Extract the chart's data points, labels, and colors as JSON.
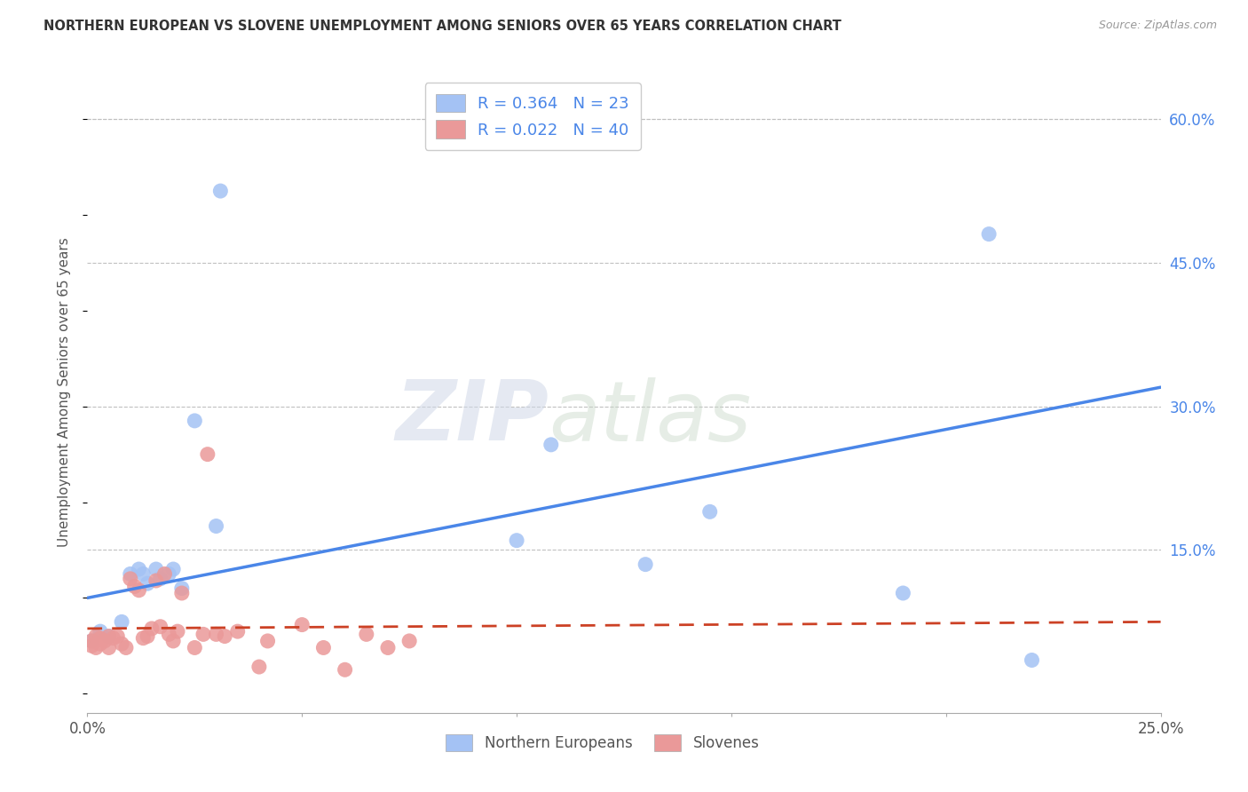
{
  "title": "NORTHERN EUROPEAN VS SLOVENE UNEMPLOYMENT AMONG SENIORS OVER 65 YEARS CORRELATION CHART",
  "source": "Source: ZipAtlas.com",
  "ylabel": "Unemployment Among Seniors over 65 years",
  "xlim": [
    0.0,
    0.25
  ],
  "ylim": [
    -0.02,
    0.65
  ],
  "xticks": [
    0.0,
    0.05,
    0.1,
    0.15,
    0.2,
    0.25
  ],
  "xticklabels": [
    "0.0%",
    "",
    "",
    "",
    "",
    "25.0%"
  ],
  "yticks_right": [
    0.0,
    0.15,
    0.3,
    0.45,
    0.6
  ],
  "yticklabels_right": [
    "",
    "15.0%",
    "30.0%",
    "45.0%",
    "60.0%"
  ],
  "blue_color": "#a4c2f4",
  "pink_color": "#ea9999",
  "blue_line_color": "#4a86e8",
  "pink_line_color": "#cc4125",
  "legend_blue_label": "R = 0.364   N = 23",
  "legend_pink_label": "R = 0.022   N = 40",
  "legend_bottom_blue": "Northern Europeans",
  "legend_bottom_pink": "Slovenes",
  "blue_line_y0": 0.1,
  "blue_line_y1": 0.32,
  "pink_line_y0": 0.068,
  "pink_line_y1": 0.075,
  "blue_x": [
    0.001,
    0.003,
    0.005,
    0.008,
    0.01,
    0.012,
    0.013,
    0.014,
    0.016,
    0.017,
    0.019,
    0.02,
    0.022,
    0.025,
    0.03,
    0.031,
    0.1,
    0.108,
    0.13,
    0.145,
    0.19,
    0.21,
    0.22
  ],
  "blue_y": [
    0.055,
    0.065,
    0.06,
    0.075,
    0.125,
    0.13,
    0.125,
    0.115,
    0.13,
    0.12,
    0.125,
    0.13,
    0.11,
    0.285,
    0.175,
    0.525,
    0.16,
    0.26,
    0.135,
    0.19,
    0.105,
    0.48,
    0.035
  ],
  "pink_x": [
    0.001,
    0.001,
    0.002,
    0.002,
    0.003,
    0.003,
    0.004,
    0.005,
    0.005,
    0.006,
    0.007,
    0.008,
    0.009,
    0.01,
    0.011,
    0.012,
    0.013,
    0.014,
    0.015,
    0.016,
    0.017,
    0.018,
    0.019,
    0.02,
    0.021,
    0.022,
    0.025,
    0.027,
    0.028,
    0.03,
    0.032,
    0.035,
    0.04,
    0.042,
    0.05,
    0.055,
    0.06,
    0.065,
    0.07,
    0.075
  ],
  "pink_y": [
    0.055,
    0.05,
    0.06,
    0.048,
    0.058,
    0.052,
    0.055,
    0.06,
    0.048,
    0.058,
    0.06,
    0.052,
    0.048,
    0.12,
    0.112,
    0.108,
    0.058,
    0.06,
    0.068,
    0.118,
    0.07,
    0.125,
    0.062,
    0.055,
    0.065,
    0.105,
    0.048,
    0.062,
    0.25,
    0.062,
    0.06,
    0.065,
    0.028,
    0.055,
    0.072,
    0.048,
    0.025,
    0.062,
    0.048,
    0.055
  ],
  "watermark_zip": "ZIP",
  "watermark_atlas": "atlas",
  "background_color": "#ffffff",
  "grid_color": "#c0c0c0"
}
